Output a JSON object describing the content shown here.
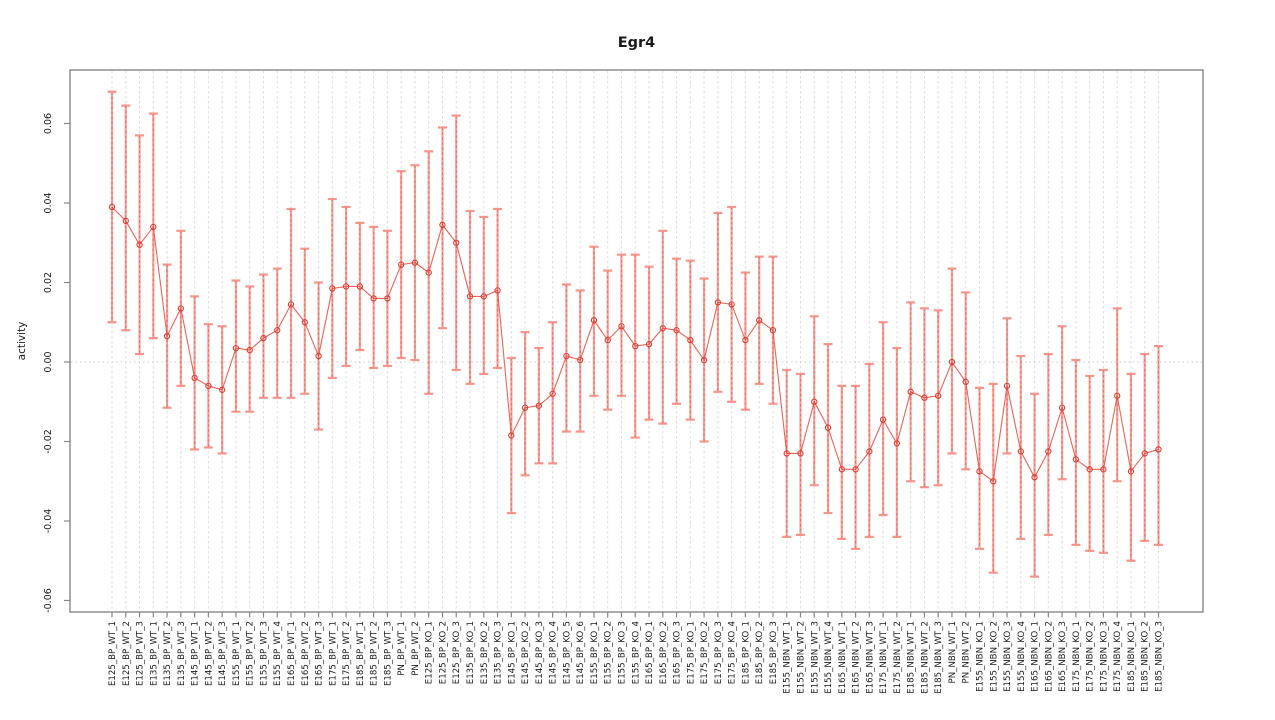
{
  "title": "Egr4",
  "chart_data": {
    "type": "line",
    "subtype": "points-with-error-bars",
    "title": "Egr4",
    "xlabel": "",
    "ylabel": "activity",
    "ylim": [
      -0.06,
      0.068
    ],
    "yticks": [
      "0.06",
      "0.04",
      "0.02",
      "0.00",
      "-0.02",
      "-0.04",
      "-0.06"
    ],
    "ytick_values": [
      0.06,
      0.04,
      0.02,
      0.0,
      -0.02,
      -0.04,
      -0.06
    ],
    "grid": "vertical dashed gridline at every category; dotted horizontal line at zero",
    "legend_position": "none",
    "point_color": "#e03a30",
    "line_color": "#e9483e",
    "error_bar_color": "#f68f85",
    "frame_color": "#878787",
    "gridline_color": "#dedede",
    "categories": [
      "E125_BP_WT_1",
      "E125_BP_WT_2",
      "E125_BP_WT_3",
      "E135_BP_WT_1",
      "E135_BP_WT_2",
      "E135_BP_WT_3",
      "E145_BP_WT_1",
      "E145_BP_WT_2",
      "E145_BP_WT_3",
      "E155_BP_WT_1",
      "E155_BP_WT_2",
      "E155_BP_WT_3",
      "E155_BP_WT_4",
      "E165_BP_WT_1",
      "E165_BP_WT_2",
      "E165_BP_WT_3",
      "E175_BP_WT_1",
      "E175_BP_WT_2",
      "E185_BP_WT_1",
      "E185_BP_WT_2",
      "E185_BP_WT_3",
      "PN_BP_WT_1",
      "PN_BP_WT_2",
      "E125_BP_KO_1",
      "E125_BP_KO_2",
      "E125_BP_KO_3",
      "E135_BP_KO_1",
      "E135_BP_KO_2",
      "E135_BP_KO_3",
      "E145_BP_KO_1",
      "E145_BP_KO_2",
      "E145_BP_KO_3",
      "E145_BP_KO_4",
      "E145_BP_KO_5",
      "E145_BP_KO_6",
      "E155_BP_KO_1",
      "E155_BP_KO_2",
      "E155_BP_KO_3",
      "E155_BP_KO_4",
      "E165_BP_KO_1",
      "E165_BP_KO_2",
      "E165_BP_KO_3",
      "E175_BP_KO_1",
      "E175_BP_KO_2",
      "E175_BP_KO_3",
      "E175_BP_KO_4",
      "E185_BP_KO_1",
      "E185_BP_KO_2",
      "E185_BP_KO_3",
      "E155_NBN_WT_1",
      "E155_NBN_WT_2",
      "E155_NBN_WT_3",
      "E155_NBN_WT_4",
      "E165_NBN_WT_1",
      "E165_NBN_WT_2",
      "E165_NBN_WT_3",
      "E175_NBN_WT_1",
      "E175_NBN_WT_2",
      "E185_NBN_WT_1",
      "E185_NBN_WT_2",
      "E185_NBN_WT_3",
      "PN_NBN_WT_1",
      "PN_NBN_WT_2",
      "E155_NBN_KO_1",
      "E155_NBN_KO_2",
      "E155_NBN_KO_3",
      "E155_NBN_KO_4",
      "E165_NBN_KO_1",
      "E165_NBN_KO_2",
      "E165_NBN_KO_3",
      "E175_NBN_KO_1",
      "E175_NBN_KO_2",
      "E175_NBN_KO_3",
      "E175_NBN_KO_4",
      "E185_NBN_KO_1",
      "E185_NBN_KO_2",
      "E185_NBN_KO_3"
    ],
    "values": [
      0.039,
      0.0355,
      0.0295,
      0.034,
      0.0065,
      0.0135,
      -0.004,
      -0.006,
      -0.007,
      0.0035,
      0.003,
      0.006,
      0.008,
      0.0145,
      0.01,
      0.0015,
      0.0185,
      0.019,
      0.019,
      0.016,
      0.016,
      0.0245,
      0.025,
      0.0225,
      0.0345,
      0.03,
      0.0165,
      0.0165,
      0.018,
      -0.0185,
      -0.0115,
      -0.011,
      -0.008,
      0.0015,
      0.0005,
      0.0105,
      0.0055,
      0.009,
      0.004,
      0.0045,
      0.0085,
      0.008,
      0.0055,
      0.0005,
      0.015,
      0.0145,
      0.0055,
      0.0105,
      0.008,
      -0.023,
      -0.023,
      -0.01,
      -0.0165,
      -0.027,
      -0.027,
      -0.0225,
      -0.0145,
      -0.0205,
      -0.0075,
      -0.009,
      -0.0085,
      0.0,
      -0.005,
      -0.0275,
      -0.03,
      -0.006,
      -0.0225,
      -0.029,
      -0.0225,
      -0.0115,
      -0.0245,
      -0.027,
      -0.027,
      -0.0085,
      -0.0275,
      -0.023,
      -0.022
    ],
    "error_high": [
      0.068,
      0.0645,
      0.057,
      0.0625,
      0.0245,
      0.033,
      0.0165,
      0.0095,
      0.009,
      0.0205,
      0.019,
      0.022,
      0.0235,
      0.0385,
      0.0285,
      0.02,
      0.041,
      0.039,
      0.035,
      0.034,
      0.033,
      0.048,
      0.0495,
      0.053,
      0.059,
      0.062,
      0.038,
      0.0365,
      0.0385,
      0.001,
      0.0075,
      0.0035,
      0.01,
      0.0195,
      0.018,
      0.029,
      0.023,
      0.027,
      0.027,
      0.024,
      0.033,
      0.026,
      0.0255,
      0.021,
      0.0375,
      0.039,
      0.0225,
      0.0265,
      0.0265,
      -0.002,
      -0.003,
      0.0115,
      0.0045,
      -0.006,
      -0.006,
      -0.0005,
      0.01,
      0.0035,
      0.015,
      0.0135,
      0.013,
      0.0235,
      0.0175,
      -0.0065,
      -0.0055,
      0.011,
      0.0015,
      -0.008,
      0.002,
      0.009,
      0.0005,
      -0.0035,
      -0.002,
      0.0135,
      -0.003,
      0.002,
      0.004
    ],
    "error_low": [
      0.01,
      0.008,
      0.002,
      0.006,
      -0.0115,
      -0.006,
      -0.022,
      -0.0215,
      -0.023,
      -0.0125,
      -0.0125,
      -0.009,
      -0.009,
      -0.009,
      -0.008,
      -0.017,
      -0.004,
      -0.001,
      0.003,
      -0.0015,
      -0.001,
      0.001,
      0.0005,
      -0.008,
      0.0085,
      -0.002,
      -0.0055,
      -0.003,
      -0.0015,
      -0.038,
      -0.0285,
      -0.0255,
      -0.0255,
      -0.0175,
      -0.0175,
      -0.0085,
      -0.012,
      -0.0085,
      -0.019,
      -0.0145,
      -0.0155,
      -0.0105,
      -0.0145,
      -0.02,
      -0.0075,
      -0.01,
      -0.012,
      -0.0055,
      -0.0105,
      -0.044,
      -0.0435,
      -0.031,
      -0.038,
      -0.0445,
      -0.047,
      -0.044,
      -0.0385,
      -0.044,
      -0.03,
      -0.0315,
      -0.031,
      -0.023,
      -0.027,
      -0.047,
      -0.053,
      -0.023,
      -0.0445,
      -0.054,
      -0.0435,
      -0.0295,
      -0.046,
      -0.0475,
      -0.048,
      -0.03,
      -0.05,
      -0.045,
      -0.046
    ]
  }
}
